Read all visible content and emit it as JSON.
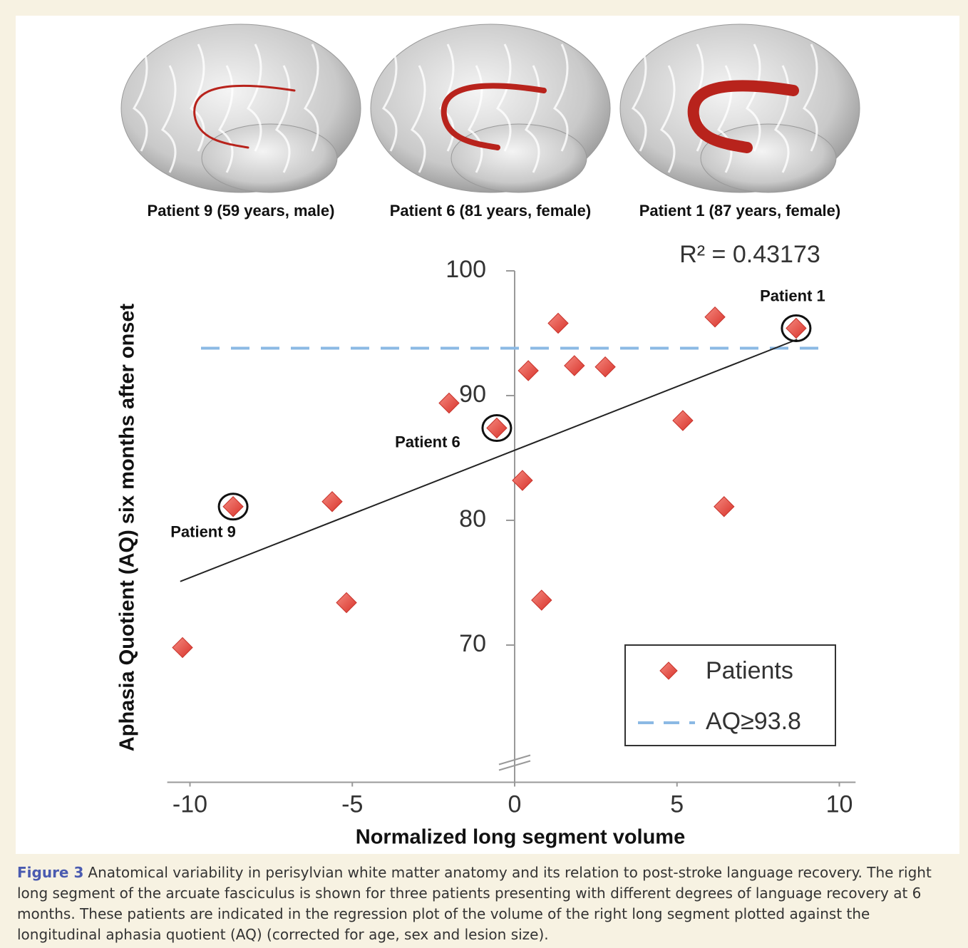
{
  "panels": [
    {
      "label": "Patient 9 (59 years, male)"
    },
    {
      "label": "Patient 6 (81 years, female)"
    },
    {
      "label": "Patient 1 (87 years, female)"
    }
  ],
  "chart_data": {
    "type": "scatter",
    "x_label": "Normalized long segment volume",
    "y_label": "Aphasia Quotient (AQ) six months after onset",
    "annotation": "R² = 0.43173",
    "xlim": [
      -10.7,
      10.5
    ],
    "xticks": [
      -10,
      -5,
      0,
      5,
      10
    ],
    "ylim": [
      59,
      100
    ],
    "yticks": [
      70,
      80,
      90,
      100
    ],
    "series": [
      {
        "name": "Patients",
        "color": "#e8473f",
        "x": [
          -10.23,
          -8.67,
          -5.62,
          -5.18,
          -2.02,
          -0.55,
          0.24,
          0.42,
          0.83,
          1.34,
          1.84,
          2.79,
          5.18,
          6.17,
          6.45,
          8.67
        ],
        "values": [
          69.8,
          81.1,
          81.5,
          73.4,
          89.4,
          87.4,
          83.2,
          92.0,
          73.6,
          95.8,
          92.4,
          92.3,
          88.0,
          96.3,
          81.1,
          95.4
        ]
      }
    ],
    "reference_line": {
      "name": "AQ≥93.8",
      "value": 93.8,
      "color": "#8bb9e4",
      "x": [
        -9.66,
        9.46
      ]
    },
    "trendline": {
      "x": [
        -10.3,
        8.7
      ],
      "values": [
        75.1,
        94.5
      ],
      "color": "#222"
    },
    "point_labels": [
      {
        "text": "Patient 9"
      },
      {
        "text": "Patient 6"
      },
      {
        "text": "Patient 1"
      }
    ]
  },
  "caption": {
    "label": "Figure 3",
    "text": "Anatomical variability in perisylvian white matter anatomy and its relation to post-stroke language recovery. The right long segment of the arcuate fasciculus is shown for three patients presenting with different degrees of language recovery at 6 months. These patients are indicated in the regression plot of the volume of the right long segment plotted against the longitudinal aphasia quotient (AQ) (corrected for age, sex and lesion size)."
  }
}
